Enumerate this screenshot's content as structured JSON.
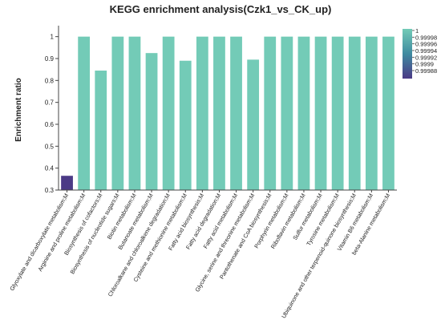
{
  "chart_data": {
    "type": "bar",
    "title": "KEGG enrichment analysis(Czk1_vs_CK_up)",
    "xlabel": "",
    "ylabel": "Enrichment ratio",
    "ylim": [
      0.3,
      1.05
    ],
    "yticks": [
      "0.3",
      "0.4",
      "0.5",
      "0.6",
      "0.7",
      "0.8",
      "0.9",
      "1"
    ],
    "grid": false,
    "categories": [
      "Glyoxylate and dicarboxylate metabolism;M",
      "Arginine and proline metabolism;M",
      "Biosynthesis of cofactors;M",
      "Biosynthesis of nucleotide sugars;M",
      "Biotin metabolism;M",
      "Butanoate metabolism;M",
      "Chloroalkane and chloroalkene degradation;M",
      "Cysteine and methionine metabolism;M",
      "Fatty acid biosynthesis;M",
      "Fatty acid degradation;M",
      "Fatty acid metabolism;M",
      "Glycine, serine and threonine metabolism;M",
      "Pantothenate and CoA biosynthesis;M",
      "Porphyrin metabolism;M",
      "Riboflavin metabolism;M",
      "Sulfur metabolism;M",
      "Tyrosine metabolism;M",
      "Ubiquinone and other terpenoid-quinone biosynthesis;M",
      "Vitamin B6 metabolism;M",
      "beta-Alanine metabolism;M"
    ],
    "values": [
      0.365,
      1,
      0.845,
      1,
      1,
      0.925,
      1,
      0.89,
      1,
      1,
      1,
      0.895,
      1,
      1,
      1,
      1,
      1,
      1,
      1,
      1
    ],
    "color_values": [
      0.99987,
      1,
      1,
      1,
      1,
      1,
      1,
      1,
      1,
      1,
      1,
      1,
      1,
      1,
      1,
      1,
      1,
      1,
      1,
      1
    ],
    "colorbar": {
      "ticks": [
        "1",
        "0.99998",
        "0.99996",
        "0.99994",
        "0.99992",
        "0.9999",
        "0.99988"
      ],
      "low_color": "#4b3a86",
      "high_color": "#73cbb7"
    },
    "colors": {
      "bar": "#73cbb7",
      "low_bar": "#4b3a86"
    }
  }
}
